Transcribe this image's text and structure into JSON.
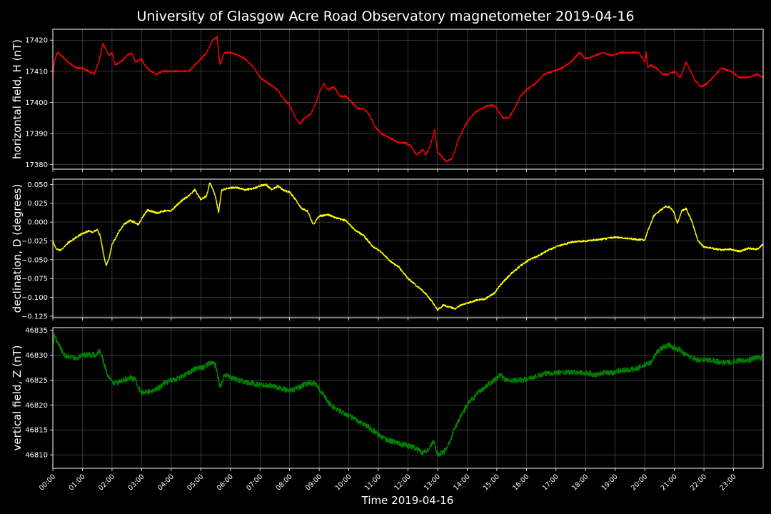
{
  "chart_data": {
    "type": "line",
    "title": "University of Glasgow Acre Road Observatory magnetometer 2019-04-16",
    "xlabel": "Time 2019-04-16",
    "xlim": [
      0,
      24
    ],
    "x_tick_labels": [
      "00:00",
      "01:00",
      "02:00",
      "03:00",
      "04:00",
      "05:00",
      "06:00",
      "07:00",
      "08:00",
      "09:00",
      "10:00",
      "11:00",
      "12:00",
      "13:00",
      "14:00",
      "15:00",
      "16:00",
      "17:00",
      "18:00",
      "19:00",
      "20:00",
      "21:00",
      "22:00",
      "23:00"
    ],
    "grid": true,
    "panels": [
      {
        "ylabel": "horizontal field, H (nT)",
        "color": "#ff0000",
        "ylim": [
          17378.5,
          17423.5
        ],
        "yticks": [
          17380,
          17390,
          17400,
          17410,
          17420
        ],
        "ytick_labels": [
          "17380",
          "17390",
          "17400",
          "17410",
          "17420"
        ],
        "noise": 0.25,
        "x": [
          0,
          0.05,
          0.15,
          0.3,
          0.5,
          0.8,
          1.0,
          1.2,
          1.4,
          1.55,
          1.7,
          1.9,
          2.0,
          2.1,
          2.3,
          2.5,
          2.65,
          2.8,
          3.0,
          3.1,
          3.3,
          3.5,
          3.7,
          4.0,
          4.3,
          4.6,
          4.8,
          5.0,
          5.2,
          5.4,
          5.55,
          5.65,
          5.8,
          6.0,
          6.3,
          6.5,
          6.8,
          7.0,
          7.3,
          7.6,
          7.8,
          8.0,
          8.2,
          8.35,
          8.5,
          8.7,
          8.9,
          9.0,
          9.15,
          9.3,
          9.5,
          9.7,
          9.9,
          10.1,
          10.3,
          10.5,
          10.7,
          10.9,
          11.1,
          11.3,
          11.5,
          11.7,
          11.9,
          12.1,
          12.3,
          12.5,
          12.6,
          12.75,
          12.9,
          13.0,
          13.1,
          13.3,
          13.5,
          13.7,
          13.9,
          14.1,
          14.3,
          14.5,
          14.7,
          14.9,
          15.0,
          15.2,
          15.4,
          15.6,
          15.8,
          16.0,
          16.3,
          16.6,
          16.9,
          17.2,
          17.5,
          17.8,
          18.0,
          18.3,
          18.6,
          18.9,
          19.2,
          19.5,
          19.8,
          20.0,
          20.05,
          20.1,
          20.2,
          20.4,
          20.6,
          20.8,
          21.0,
          21.2,
          21.4,
          21.55,
          21.7,
          21.9,
          22.1,
          22.3,
          22.6,
          22.9,
          23.2,
          23.5,
          23.8,
          23.98
        ],
        "values": [
          17408,
          17413,
          17416,
          17415,
          17413,
          17411,
          17411,
          17410,
          17409,
          17413,
          17419,
          17415,
          17416,
          17412,
          17413,
          17415,
          17416,
          17413,
          17414,
          17412,
          17410,
          17409,
          17410,
          17410,
          17410,
          17410,
          17412,
          17414,
          17416,
          17420,
          17421,
          17412,
          17416,
          17416,
          17415,
          17414,
          17411,
          17408,
          17406,
          17404,
          17401,
          17399,
          17395,
          17393,
          17395,
          17396,
          17400,
          17403,
          17406,
          17404,
          17405,
          17402,
          17402,
          17400,
          17398,
          17398,
          17396,
          17392,
          17390,
          17389,
          17388,
          17387,
          17387,
          17386,
          17383,
          17385,
          17383,
          17386,
          17391,
          17384,
          17383,
          17381,
          17382,
          17388,
          17392,
          17395,
          17397,
          17398,
          17399,
          17399,
          17398,
          17395,
          17395,
          17398,
          17402,
          17404,
          17406,
          17409,
          17410,
          17411,
          17413,
          17416,
          17414,
          17415,
          17416,
          17415,
          17416,
          17416,
          17416,
          17413,
          17416,
          17411,
          17412,
          17411,
          17409,
          17409,
          17410,
          17408,
          17413,
          17410,
          17407,
          17405,
          17406,
          17408,
          17411,
          17410,
          17408,
          17408,
          17409,
          17408
        ]
      },
      {
        "ylabel": "declination, D (degrees)",
        "color": "#ffff00",
        "ylim": [
          -0.127,
          0.057
        ],
        "yticks": [
          -0.125,
          -0.1,
          -0.075,
          -0.05,
          -0.025,
          0.0,
          0.025,
          0.05
        ],
        "ytick_labels": [
          "−0.125",
          "−0.100",
          "−0.075",
          "−0.050",
          "−0.025",
          "0.000",
          "0.025",
          "0.050"
        ],
        "noise": 0.0012,
        "x": [
          0,
          0.1,
          0.25,
          0.5,
          0.8,
          1.0,
          1.2,
          1.35,
          1.5,
          1.6,
          1.7,
          1.8,
          1.9,
          2.0,
          2.2,
          2.4,
          2.6,
          2.75,
          2.9,
          3.0,
          3.2,
          3.5,
          3.8,
          4.0,
          4.2,
          4.4,
          4.6,
          4.8,
          5.0,
          5.2,
          5.3,
          5.4,
          5.5,
          5.6,
          5.7,
          5.9,
          6.2,
          6.5,
          6.8,
          7.0,
          7.2,
          7.4,
          7.6,
          7.8,
          8.0,
          8.2,
          8.4,
          8.6,
          8.8,
          9.0,
          9.3,
          9.6,
          9.9,
          10.2,
          10.5,
          10.8,
          11.1,
          11.4,
          11.7,
          12.0,
          12.3,
          12.6,
          12.8,
          13.0,
          13.2,
          13.4,
          13.6,
          13.8,
          14.0,
          14.3,
          14.6,
          14.9,
          15.2,
          15.5,
          15.8,
          16.1,
          16.4,
          16.7,
          17.0,
          17.3,
          17.6,
          18.0,
          18.5,
          19.0,
          19.5,
          20.0,
          20.1,
          20.3,
          20.5,
          20.7,
          20.85,
          21.0,
          21.1,
          21.25,
          21.4,
          21.6,
          21.8,
          22.0,
          22.3,
          22.6,
          22.9,
          23.2,
          23.5,
          23.8,
          23.98
        ],
        "values": [
          -0.025,
          -0.035,
          -0.038,
          -0.028,
          -0.02,
          -0.015,
          -0.012,
          -0.013,
          -0.01,
          -0.018,
          -0.04,
          -0.058,
          -0.048,
          -0.03,
          -0.015,
          -0.003,
          0.002,
          0.0,
          -0.003,
          0.005,
          0.016,
          0.012,
          0.015,
          0.015,
          0.023,
          0.03,
          0.035,
          0.043,
          0.03,
          0.035,
          0.052,
          0.045,
          0.033,
          0.012,
          0.042,
          0.045,
          0.046,
          0.043,
          0.045,
          0.048,
          0.05,
          0.043,
          0.048,
          0.042,
          0.04,
          0.03,
          0.018,
          0.015,
          -0.003,
          0.008,
          0.01,
          0.005,
          0.002,
          -0.01,
          -0.018,
          -0.032,
          -0.04,
          -0.052,
          -0.06,
          -0.075,
          -0.085,
          -0.095,
          -0.105,
          -0.117,
          -0.11,
          -0.113,
          -0.115,
          -0.11,
          -0.108,
          -0.104,
          -0.102,
          -0.095,
          -0.08,
          -0.068,
          -0.058,
          -0.05,
          -0.045,
          -0.038,
          -0.033,
          -0.029,
          -0.026,
          -0.025,
          -0.023,
          -0.02,
          -0.022,
          -0.024,
          -0.012,
          0.008,
          0.015,
          0.02,
          0.02,
          0.012,
          -0.002,
          0.015,
          0.018,
          0.0,
          -0.025,
          -0.033,
          -0.035,
          -0.037,
          -0.036,
          -0.039,
          -0.035,
          -0.036,
          -0.03
        ]
      },
      {
        "ylabel": "vertical field, Z (nT)",
        "color": "#008000",
        "ylim": [
          46807.3,
          46835.5
        ],
        "yticks": [
          46810,
          46815,
          46820,
          46825,
          46830,
          46835
        ],
        "ytick_labels": [
          "46810",
          "46815",
          "46820",
          "46825",
          "46830",
          "46835"
        ],
        "noise": 0.55,
        "x": [
          0,
          0.05,
          0.2,
          0.4,
          0.6,
          0.8,
          1.0,
          1.2,
          1.45,
          1.6,
          1.7,
          1.85,
          2.0,
          2.2,
          2.4,
          2.6,
          2.8,
          2.95,
          3.0,
          3.2,
          3.4,
          3.6,
          3.8,
          4.0,
          4.3,
          4.6,
          4.9,
          5.1,
          5.3,
          5.5,
          5.65,
          5.8,
          6.0,
          6.3,
          6.6,
          7.0,
          7.3,
          7.6,
          7.9,
          8.1,
          8.3,
          8.5,
          8.7,
          8.9,
          9.1,
          9.3,
          9.5,
          9.8,
          10.1,
          10.4,
          10.7,
          11.0,
          11.3,
          11.6,
          11.9,
          12.2,
          12.5,
          12.7,
          12.85,
          13.0,
          13.2,
          13.4,
          13.6,
          13.8,
          14.0,
          14.3,
          14.6,
          14.9,
          15.1,
          15.3,
          15.6,
          15.9,
          16.2,
          16.5,
          16.8,
          17.1,
          17.4,
          17.7,
          18.0,
          18.3,
          18.6,
          18.9,
          19.2,
          19.5,
          19.8,
          20.0,
          20.2,
          20.4,
          20.6,
          20.8,
          21.0,
          21.2,
          21.4,
          21.6,
          21.8,
          22.0,
          22.3,
          22.6,
          22.9,
          23.2,
          23.5,
          23.8,
          23.98
        ],
        "values": [
          46832,
          46834,
          46832,
          46830,
          46829.5,
          46829.5,
          46830,
          46830,
          46830,
          46831,
          46829,
          46826,
          46824.5,
          46824.5,
          46825,
          46825.5,
          46825,
          46823,
          46822.5,
          46822.5,
          46823,
          46823.5,
          46824.5,
          46825,
          46825.5,
          46826.5,
          46827.5,
          46827.5,
          46828.5,
          46828,
          46823.5,
          46826,
          46825.5,
          46825,
          46824.5,
          46824,
          46824,
          46823.5,
          46823,
          46823,
          46823.5,
          46824,
          46824.5,
          46824,
          46822.5,
          46820.5,
          46819.5,
          46818.5,
          46817.5,
          46816.5,
          46815.5,
          46814,
          46813,
          46812.5,
          46812,
          46811.5,
          46810.5,
          46811,
          46813,
          46810,
          46810.5,
          46812.5,
          46815.5,
          46818,
          46820,
          46822,
          46823.5,
          46825,
          46826,
          46825,
          46825,
          46825,
          46825.5,
          46826,
          46826.5,
          46826.5,
          46826.5,
          46826.5,
          46826.5,
          46826,
          46826.5,
          46826.5,
          46827,
          46827,
          46827.5,
          46828,
          46828.5,
          46830.5,
          46831.5,
          46832,
          46831.5,
          46831,
          46830,
          46829.5,
          46829,
          46829,
          46829,
          46828.5,
          46828.5,
          46829,
          46829,
          46829.5,
          46829.5
        ]
      }
    ]
  }
}
